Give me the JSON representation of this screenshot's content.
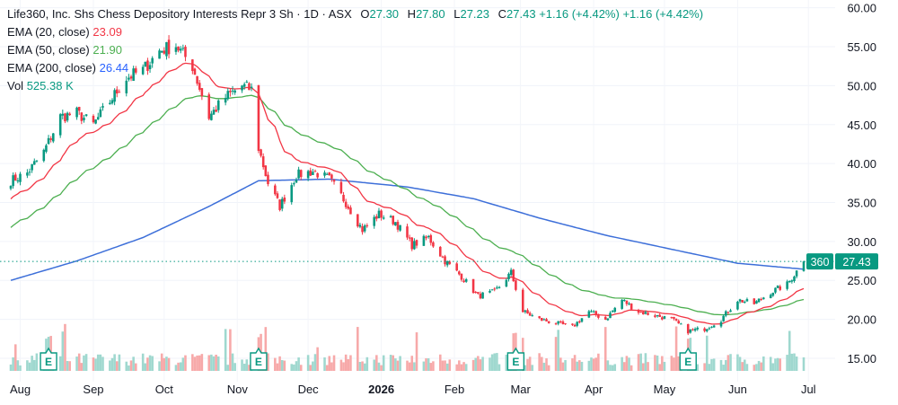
{
  "header": {
    "symbol": "Life360, Inc. Shs Chess Depository Interests Repr 3 Sh",
    "interval": "1D",
    "exchange": "ASX",
    "open_label": "O",
    "open": "27.30",
    "high_label": "H",
    "high": "27.80",
    "low_label": "L",
    "low": "27.23",
    "close_label": "C",
    "close": "27.43",
    "change": "+1.16 (+4.42%)",
    "change2": "+1.16 (+4.42%)"
  },
  "indicators": [
    {
      "label": "EMA (20, close)",
      "value": "23.09",
      "color": "#f23645"
    },
    {
      "label": "EMA (50, close)",
      "value": "21.90",
      "color": "#4caf50"
    },
    {
      "label": "EMA (200, close)",
      "value": "26.44",
      "color": "#2962ff"
    },
    {
      "label": "Vol",
      "value": "525.38 K",
      "color": "#089981"
    }
  ],
  "price_tags": {
    "ema200_tag": "360",
    "last_price": "27.43"
  },
  "colors": {
    "up": "#089981",
    "down": "#f23645",
    "ema20": "#f23645",
    "ema50": "#4caf50",
    "ema200": "#3d6fd9",
    "vol_up": "#9fd8cf",
    "vol_down": "#f7a9a9"
  },
  "chart_data": {
    "type": "candlestick",
    "x_ticks": [
      "Aug",
      "Sep",
      "Oct",
      "Nov",
      "Dec",
      "2026",
      "Feb",
      "Mar",
      "Apr",
      "May",
      "Jun",
      "Jul"
    ],
    "y_ticks": [
      "60.00",
      "55.00",
      "50.00",
      "45.00",
      "40.00",
      "35.00",
      "30.00",
      "25.00",
      "20.00",
      "15.00"
    ],
    "ylim": [
      12,
      61
    ],
    "close_anchors": [
      [
        "2025-07-28",
        37.8
      ],
      [
        "2025-08-04",
        38.8
      ],
      [
        "2025-08-11",
        41.5
      ],
      [
        "2025-08-18",
        46.0
      ],
      [
        "2025-08-25",
        46.5
      ],
      [
        "2025-09-01",
        45.0
      ],
      [
        "2025-09-08",
        48.0
      ],
      [
        "2025-09-15",
        51.0
      ],
      [
        "2025-09-22",
        52.0
      ],
      [
        "2025-09-29",
        54.5
      ],
      [
        "2025-10-06",
        55.2
      ],
      [
        "2025-10-13",
        52.5
      ],
      [
        "2025-10-20",
        46.0
      ],
      [
        "2025-10-27",
        48.5
      ],
      [
        "2025-11-03",
        50.0
      ],
      [
        "2025-11-07",
        49.5
      ],
      [
        "2025-11-10",
        42.0
      ],
      [
        "2025-11-14",
        37.5
      ],
      [
        "2025-11-19",
        34.5
      ],
      [
        "2025-11-26",
        38.5
      ],
      [
        "2025-12-03",
        39.0
      ],
      [
        "2025-12-10",
        38.0
      ],
      [
        "2025-12-17",
        35.0
      ],
      [
        "2025-12-24",
        31.5
      ],
      [
        "2025-12-31",
        33.5
      ],
      [
        "2026-01-07",
        32.5
      ],
      [
        "2026-01-14",
        29.5
      ],
      [
        "2026-01-21",
        30.5
      ],
      [
        "2026-01-28",
        27.5
      ],
      [
        "2026-02-04",
        25.5
      ],
      [
        "2026-02-11",
        23.0
      ],
      [
        "2026-02-18",
        23.5
      ],
      [
        "2026-02-25",
        26.0
      ],
      [
        "2026-03-02",
        21.0
      ],
      [
        "2026-03-09",
        20.0
      ],
      [
        "2026-03-16",
        19.5
      ],
      [
        "2026-03-23",
        19.0
      ],
      [
        "2026-03-30",
        21.0
      ],
      [
        "2026-04-06",
        20.0
      ],
      [
        "2026-04-13",
        22.5
      ],
      [
        "2026-04-20",
        21.0
      ],
      [
        "2026-04-27",
        20.5
      ],
      [
        "2026-05-04",
        20.0
      ],
      [
        "2026-05-11",
        18.5
      ],
      [
        "2026-05-18",
        18.8
      ],
      [
        "2026-05-25",
        20.0
      ],
      [
        "2026-06-01",
        22.5
      ],
      [
        "2026-06-08",
        22.0
      ],
      [
        "2026-06-15",
        23.5
      ],
      [
        "2026-06-22",
        24.5
      ],
      [
        "2026-06-29",
        27.43
      ]
    ],
    "ema200_anchors": [
      [
        "2025-07-28",
        25.0
      ],
      [
        "2025-08-25",
        27.5
      ],
      [
        "2025-09-22",
        30.5
      ],
      [
        "2025-10-20",
        34.5
      ],
      [
        "2025-11-10",
        37.8
      ],
      [
        "2025-12-10",
        38.0
      ],
      [
        "2026-01-12",
        37.0
      ],
      [
        "2026-02-09",
        35.5
      ],
      [
        "2026-03-09",
        33.0
      ],
      [
        "2026-04-06",
        30.8
      ],
      [
        "2026-05-04",
        29.0
      ],
      [
        "2026-06-01",
        27.2
      ],
      [
        "2026-06-29",
        26.44
      ]
    ],
    "earnings_dates": [
      "2025-08-13",
      "2025-11-10",
      "2026-02-27",
      "2026-05-11"
    ],
    "earnings_label": "E",
    "last_close": 27.43,
    "ema20_last": 23.09,
    "ema50_last": 21.9,
    "ema200_last": 26.44
  }
}
